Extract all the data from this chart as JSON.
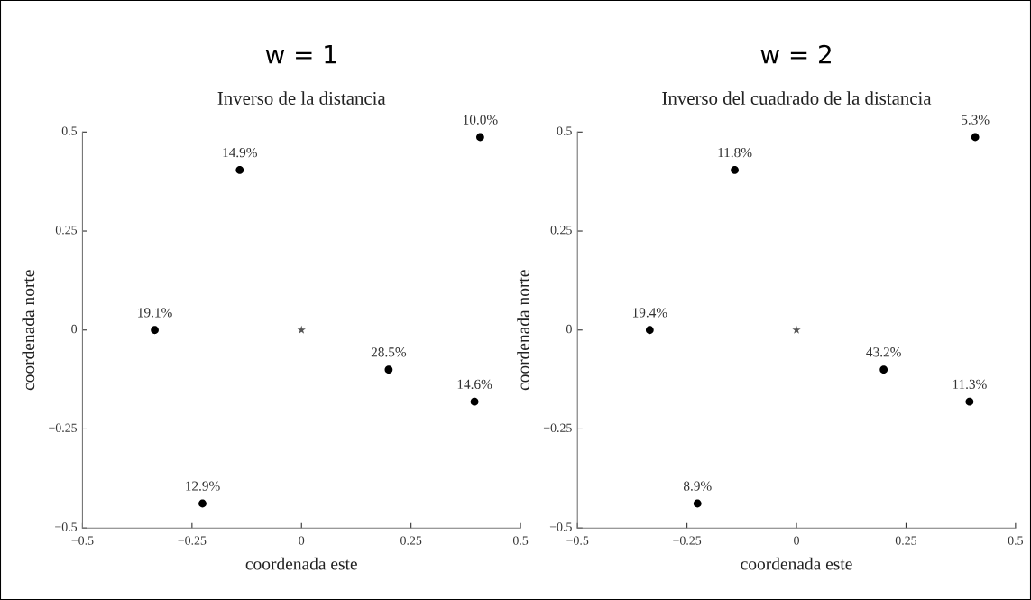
{
  "chart_data": [
    {
      "type": "scatter",
      "title": "w = 1",
      "subtitle": "Inverso de la distancia",
      "xlabel": "coordenada este",
      "ylabel": "coordenada norte",
      "xlim": [
        -0.5,
        0.5
      ],
      "ylim": [
        -0.5,
        0.5
      ],
      "xticks": [
        -0.5,
        -0.25,
        0,
        0.25,
        0.5
      ],
      "yticks": [
        -0.5,
        -0.25,
        0,
        0.25,
        0.5
      ],
      "grid": false,
      "legend": false,
      "series": [
        {
          "color": "#000000",
          "marker": "circle",
          "x": [
            -0.141,
            0.408,
            -0.335,
            0.199,
            0.395,
            -0.226
          ],
          "values": [
            0.404,
            0.487,
            0.0,
            -0.1,
            -0.181,
            -0.438
          ]
        },
        {
          "color": "#555555",
          "marker": "star",
          "x": [
            0
          ],
          "values": [
            0
          ]
        }
      ],
      "annotations": [
        {
          "text": "14.9%",
          "x": -0.141,
          "y": 0.404
        },
        {
          "text": "10.0%",
          "x": 0.408,
          "y": 0.487
        },
        {
          "text": "19.1%",
          "x": -0.335,
          "y": 0.0
        },
        {
          "text": "28.5%",
          "x": 0.199,
          "y": -0.1
        },
        {
          "text": "14.6%",
          "x": 0.395,
          "y": -0.181
        },
        {
          "text": "12.9%",
          "x": -0.226,
          "y": -0.438
        }
      ]
    },
    {
      "type": "scatter",
      "title": "w = 2",
      "subtitle": "Inverso del cuadrado de la distancia",
      "xlabel": "coordenada este",
      "ylabel": "coordenada norte",
      "xlim": [
        -0.5,
        0.5
      ],
      "ylim": [
        -0.5,
        0.5
      ],
      "xticks": [
        -0.5,
        -0.25,
        0,
        0.25,
        0.5
      ],
      "yticks": [
        -0.5,
        -0.25,
        0,
        0.25,
        0.5
      ],
      "grid": false,
      "legend": false,
      "series": [
        {
          "color": "#000000",
          "marker": "circle",
          "x": [
            -0.141,
            0.408,
            -0.335,
            0.199,
            0.395,
            -0.226
          ],
          "values": [
            0.404,
            0.487,
            0.0,
            -0.1,
            -0.181,
            -0.438
          ]
        },
        {
          "color": "#555555",
          "marker": "star",
          "x": [
            0
          ],
          "values": [
            0
          ]
        }
      ],
      "annotations": [
        {
          "text": "11.8%",
          "x": -0.141,
          "y": 0.404
        },
        {
          "text": "5.3%",
          "x": 0.408,
          "y": 0.487
        },
        {
          "text": "19.4%",
          "x": -0.335,
          "y": 0.0
        },
        {
          "text": "43.2%",
          "x": 0.199,
          "y": -0.1
        },
        {
          "text": "11.3%",
          "x": 0.395,
          "y": -0.181
        },
        {
          "text": "8.9%",
          "x": -0.226,
          "y": -0.438
        }
      ]
    }
  ]
}
